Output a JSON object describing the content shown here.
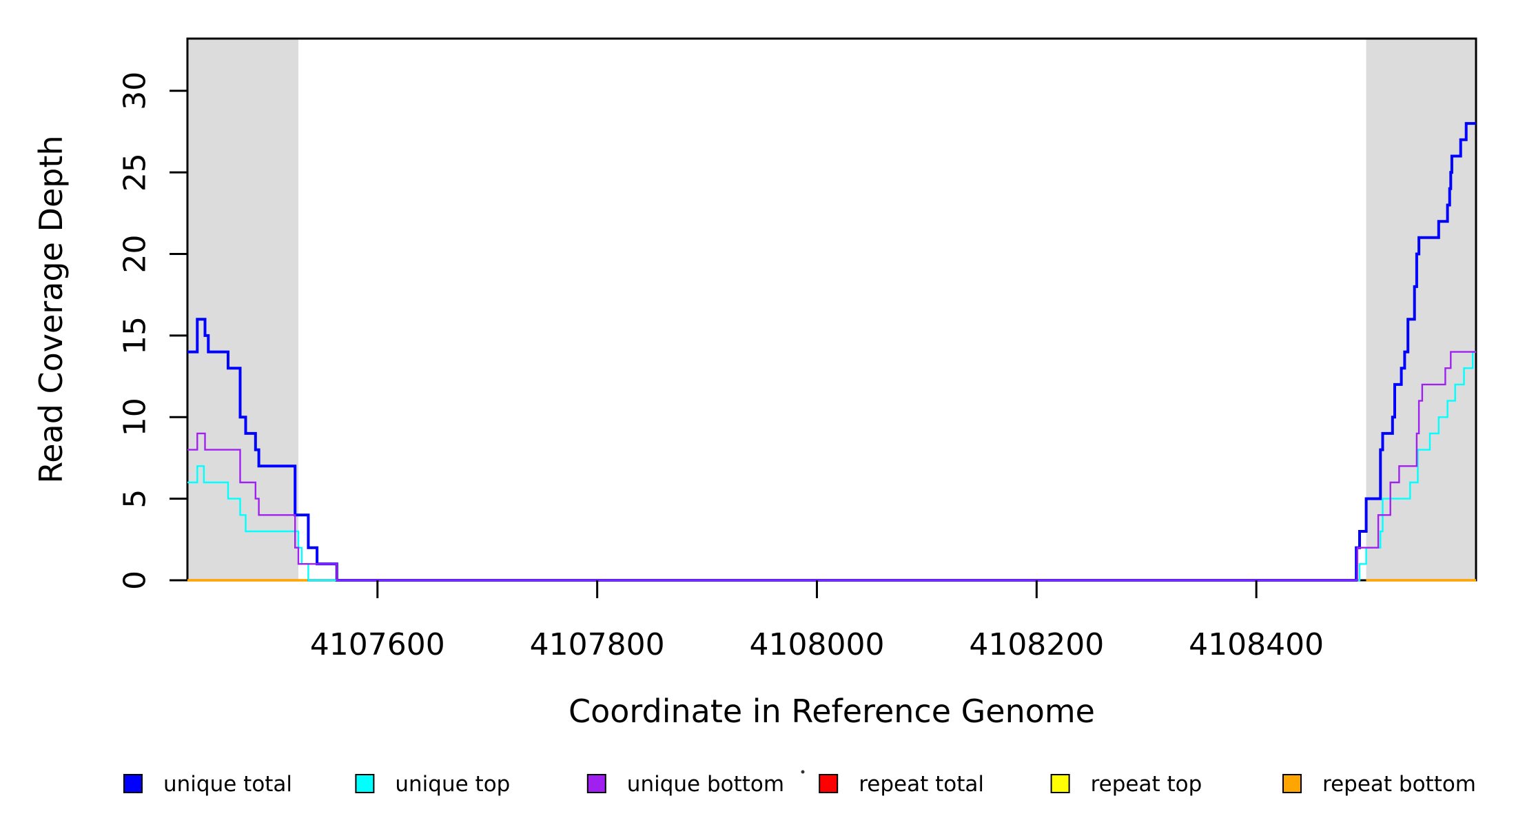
{
  "figure": {
    "background_color": "#ffffff",
    "box_color": "#000000",
    "shaded_band_color": "#DCDCDC",
    "shaded_regions": [
      {
        "name": "left-flank",
        "from": 4107427,
        "to": 4107528
      },
      {
        "name": "right-flank",
        "from": 4108500,
        "to": 4108600
      }
    ],
    "legend": {
      "items": [
        {
          "label": "unique total",
          "color": "#0000FF"
        },
        {
          "label": "unique top",
          "color": "#00FFFF"
        },
        {
          "label": "unique bottom",
          "color": "#A020F0"
        },
        {
          "label": "repeat total",
          "color": "#FF0000"
        },
        {
          "label": "repeat top",
          "color": "#FFFF00"
        },
        {
          "label": "repeat bottom",
          "color": "#FFA500"
        }
      ]
    }
  },
  "chart_data": {
    "type": "line",
    "step": "after",
    "title": "",
    "xlabel": "Coordinate in Reference Genome",
    "ylabel": "Read Coverage Depth",
    "xlim": [
      4107427,
      4108600
    ],
    "ylim": [
      0,
      33.2
    ],
    "x_ticks": [
      4107600,
      4107800,
      4108000,
      4108200,
      4108400
    ],
    "y_ticks": [
      0,
      5,
      10,
      15,
      20,
      25,
      30
    ],
    "grid": false,
    "legend_position": "bottom",
    "series": [
      {
        "name": "unique total",
        "color": "#0000FF",
        "line_width": 4,
        "segments": [
          [
            [
              4107427,
              14
            ],
            [
              4107436,
              16
            ],
            [
              4107443,
              15
            ],
            [
              4107446,
              14
            ],
            [
              4107464,
              13
            ],
            [
              4107475,
              10
            ],
            [
              4107480,
              9
            ],
            [
              4107489,
              8
            ],
            [
              4107492,
              7
            ],
            [
              4107525,
              4
            ],
            [
              4107537,
              2
            ],
            [
              4107545,
              1
            ],
            [
              4107563,
              0
            ],
            [
              4108491,
              2
            ],
            [
              4108494,
              3
            ],
            [
              4108500,
              5
            ],
            [
              4108513,
              8
            ],
            [
              4108515,
              9
            ],
            [
              4108524,
              10
            ],
            [
              4108526,
              12
            ],
            [
              4108532,
              13
            ],
            [
              4108535,
              14
            ],
            [
              4108538,
              16
            ],
            [
              4108544,
              18
            ],
            [
              4108546,
              20
            ],
            [
              4108548,
              21
            ],
            [
              4108566,
              22
            ],
            [
              4108574,
              23
            ],
            [
              4108576,
              24
            ],
            [
              4108577,
              25
            ],
            [
              4108578,
              26
            ],
            [
              4108586,
              27
            ],
            [
              4108591,
              28
            ],
            [
              4108600,
              28
            ]
          ]
        ]
      },
      {
        "name": "unique top",
        "color": "#00FFFF",
        "line_width": 2.4,
        "segments": [
          [
            [
              4107427,
              6
            ],
            [
              4107436,
              7
            ],
            [
              4107442,
              6
            ],
            [
              4107464,
              5
            ],
            [
              4107475,
              4
            ],
            [
              4107480,
              3
            ],
            [
              4107528,
              2
            ],
            [
              4107531,
              1
            ],
            [
              4107537,
              0
            ],
            [
              4108494,
              1
            ],
            [
              4108500,
              2
            ],
            [
              4108513,
              3
            ],
            [
              4108515,
              5
            ],
            [
              4108540,
              6
            ],
            [
              4108547,
              8
            ],
            [
              4108558,
              9
            ],
            [
              4108566,
              10
            ],
            [
              4108574,
              11
            ],
            [
              4108581,
              12
            ],
            [
              4108589,
              13
            ],
            [
              4108597,
              14
            ],
            [
              4108600,
              14
            ]
          ]
        ]
      },
      {
        "name": "unique bottom",
        "color": "#A020F0",
        "line_width": 2.4,
        "segments": [
          [
            [
              4107427,
              8
            ],
            [
              4107436,
              9
            ],
            [
              4107443,
              8
            ],
            [
              4107475,
              6
            ],
            [
              4107489,
              5
            ],
            [
              4107492,
              4
            ],
            [
              4107525,
              2
            ],
            [
              4107528,
              1
            ],
            [
              4107563,
              0
            ],
            [
              4108492,
              2
            ],
            [
              4108511,
              4
            ],
            [
              4108522,
              6
            ],
            [
              4108530,
              7
            ],
            [
              4108546,
              9
            ],
            [
              4108548,
              11
            ],
            [
              4108551,
              12
            ],
            [
              4108572,
              13
            ],
            [
              4108577,
              14
            ],
            [
              4108600,
              14
            ]
          ]
        ]
      },
      {
        "name": "repeat total",
        "color": "#FF0000",
        "line_width": 3.2,
        "segments": [
          [
            [
              4107427,
              0
            ],
            [
              4107536,
              0
            ]
          ],
          [
            [
              4108500,
              0
            ],
            [
              4108600,
              0
            ]
          ]
        ]
      },
      {
        "name": "repeat top",
        "color": "#FFFF00",
        "line_width": 3.2,
        "segments": [
          [
            [
              4107427,
              0
            ],
            [
              4107536,
              0
            ]
          ],
          [
            [
              4108500,
              0
            ],
            [
              4108600,
              0
            ]
          ]
        ]
      },
      {
        "name": "repeat bottom",
        "color": "#FFA500",
        "line_width": 3.2,
        "segments": [
          [
            [
              4107427,
              0
            ],
            [
              4107536,
              0
            ]
          ],
          [
            [
              4108500,
              0
            ],
            [
              4108600,
              0
            ]
          ]
        ]
      }
    ]
  }
}
